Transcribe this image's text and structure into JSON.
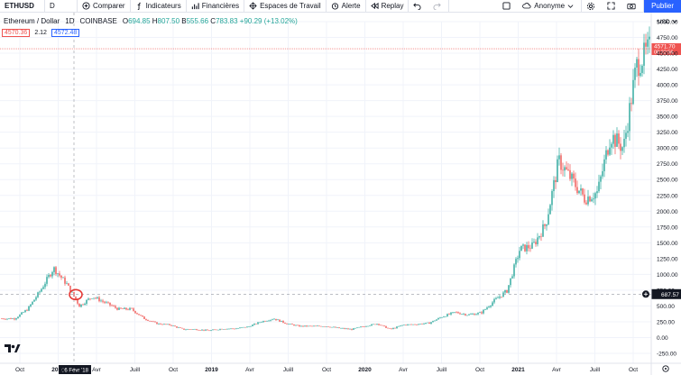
{
  "toolbar": {
    "symbol": "ETHUSD",
    "interval": "D",
    "compare_label": "Comparer",
    "indicators_label": "Indicateurs",
    "financials_label": "Financières",
    "workspaces_label": "Espaces de Travail",
    "alert_label": "Alerte",
    "replay_label": "Replay",
    "account_label": "Anonyme",
    "publish_label": "Publier"
  },
  "legend": {
    "name": "Ethereum / Dollar",
    "interval": "1D",
    "exchange": "COINBASE",
    "o_label": "O",
    "o": "694.85",
    "h_label": "H",
    "h": "807.50",
    "b_label": "B",
    "b": "555.66",
    "c_label": "C",
    "c": "783.83",
    "change": "+90.29 (+13.02%)",
    "bid": "4570.36",
    "spread": "2.12",
    "ask": "4572.48"
  },
  "price_axis": {
    "currency": "USD",
    "ticks": [
      "5000.00",
      "4750.00",
      "4500.00",
      "4250.00",
      "4000.00",
      "3750.00",
      "3500.00",
      "3250.00",
      "3000.00",
      "2750.00",
      "2500.00",
      "2250.00",
      "2000.00",
      "1750.00",
      "1500.00",
      "1250.00",
      "1000.00",
      "750.00",
      "500.00",
      "250.00",
      "0.00",
      "-250.00"
    ],
    "last_price": "4571.70",
    "countdown": "08:22:56",
    "crosshair_price": "687.57"
  },
  "time_axis": {
    "ticks": [
      "Oct",
      "2018",
      "Avr",
      "Juill",
      "Oct",
      "2019",
      "Avr",
      "Juill",
      "Oct",
      "2020",
      "Avr",
      "Juill",
      "Oct",
      "2021",
      "Avr",
      "Juill",
      "Oct"
    ],
    "crosshair_date": "06 Févr '18"
  },
  "colors": {
    "up": "#26a69a",
    "down": "#ef5350",
    "accent": "#2962ff",
    "marker": "#e53935"
  },
  "chart_data": {
    "type": "candlestick",
    "title": "Ethereum / Dollar 1D COINBASE",
    "ylim": [
      -250,
      5000
    ],
    "x": [
      "2017-09",
      "2017-10",
      "2017-11",
      "2017-12",
      "2018-01",
      "2018-02",
      "2018-03",
      "2018-04",
      "2018-05",
      "2018-06",
      "2018-07",
      "2018-08",
      "2018-09",
      "2018-10",
      "2018-11",
      "2018-12",
      "2019-01",
      "2019-02",
      "2019-03",
      "2019-04",
      "2019-05",
      "2019-06",
      "2019-07",
      "2019-08",
      "2019-09",
      "2019-10",
      "2019-11",
      "2019-12",
      "2020-01",
      "2020-02",
      "2020-03",
      "2020-04",
      "2020-05",
      "2020-06",
      "2020-07",
      "2020-08",
      "2020-09",
      "2020-10",
      "2020-11",
      "2020-12",
      "2021-01",
      "2021-02",
      "2021-03",
      "2021-04",
      "2021-05",
      "2021-06",
      "2021-07",
      "2021-08",
      "2021-09",
      "2021-10",
      "2021-11"
    ],
    "close": [
      300,
      300,
      450,
      750,
      1100,
      850,
      500,
      650,
      550,
      450,
      450,
      300,
      220,
      200,
      130,
      130,
      110,
      140,
      140,
      170,
      250,
      300,
      220,
      180,
      180,
      180,
      150,
      130,
      180,
      220,
      130,
      200,
      210,
      230,
      330,
      400,
      360,
      390,
      580,
      740,
      1400,
      1450,
      1800,
      2800,
      2500,
      2200,
      2300,
      3200,
      3000,
      4300,
      4571.7
    ]
  }
}
